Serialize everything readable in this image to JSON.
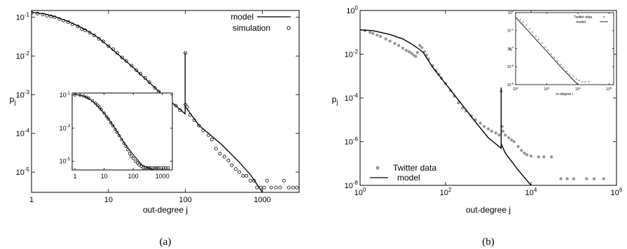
{
  "chart_data": [
    {
      "id": "a",
      "type": "scatter",
      "caption": "(a)",
      "xlabel": "out-degree j",
      "ylabel": "p",
      "ylabel_sub": "j",
      "xscale": "log",
      "yscale": "log",
      "xlim": [
        1,
        3000
      ],
      "ylim": [
        3e-06,
        0.15
      ],
      "x_ticks": [
        1,
        10,
        100,
        1000
      ],
      "x_tick_labels": [
        "1",
        "10",
        "100",
        "1000"
      ],
      "y_ticks": [
        1e-05,
        0.0001,
        0.001,
        0.01,
        0.1
      ],
      "y_tick_labels": [
        "10",
        "10",
        "10",
        "10",
        "10"
      ],
      "y_tick_exps": [
        "-5",
        "-4",
        "-3",
        "-2",
        "-1"
      ],
      "legend_position": "top-right",
      "series": [
        {
          "name": "model",
          "kind": "line",
          "x": [
            1,
            1.5,
            2,
            3,
            4,
            5,
            7,
            10,
            15,
            20,
            30,
            50,
            70,
            99,
            99,
            99,
            150,
            200,
            300,
            500,
            700,
            1000
          ],
          "y": [
            0.135,
            0.122,
            0.105,
            0.078,
            0.06,
            0.048,
            0.032,
            0.018,
            0.009,
            0.0055,
            0.0026,
            0.001,
            0.00058,
            0.00032,
            0.0122,
            0.0005,
            0.00016,
            0.0001,
            5e-05,
            1.8e-05,
            8.5e-06,
            3e-06
          ]
        },
        {
          "name": "simulation",
          "kind": "points",
          "x": [
            1,
            1.2,
            1.4,
            1.6,
            1.8,
            2,
            2.3,
            2.6,
            3,
            3.4,
            4,
            4.5,
            5,
            5.7,
            6.5,
            7.5,
            8.5,
            10,
            11.5,
            13,
            15,
            17,
            20,
            23,
            26,
            30,
            34,
            40,
            45,
            50,
            57,
            65,
            75,
            85,
            100,
            100,
            105,
            115,
            130,
            150,
            170,
            200,
            220,
            250,
            280,
            320,
            360,
            400,
            450,
            500,
            560,
            620,
            700,
            780,
            850,
            950,
            1050,
            1150,
            1300,
            1500,
            1700,
            1900,
            2200,
            2500,
            2800
          ],
          "y": [
            0.13,
            0.125,
            0.118,
            0.11,
            0.105,
            0.1,
            0.09,
            0.082,
            0.075,
            0.066,
            0.058,
            0.05,
            0.046,
            0.04,
            0.034,
            0.028,
            0.024,
            0.018,
            0.015,
            0.012,
            0.0092,
            0.0075,
            0.0056,
            0.0043,
            0.0035,
            0.0027,
            0.0021,
            0.0015,
            0.0012,
            0.001,
            0.00082,
            0.00066,
            0.00052,
            0.0004,
            0.012,
            0.00055,
            0.00048,
            0.0003,
            0.00022,
            0.00016,
            0.00012,
            9e-05,
            7e-05,
            4e-05,
            3e-05,
            2.5e-05,
            2e-05,
            1.5e-05,
            1.2e-05,
            1e-05,
            8e-06,
            8e-06,
            6e-06,
            6e-06,
            4e-06,
            4e-06,
            4e-06,
            6e-06,
            4e-06,
            4e-06,
            4e-06,
            6e-06,
            4e-06,
            4e-06,
            4e-06
          ]
        }
      ],
      "inset": {
        "xscale": "log",
        "yscale": "log",
        "xlim": [
          0.8,
          2200
        ],
        "ylim": [
          3e-06,
          0.13
        ],
        "x_ticks": [
          1,
          10,
          100,
          1000
        ],
        "x_tick_labels": [
          "1",
          "10",
          "100",
          "1000"
        ],
        "y_ticks": [
          1e-05,
          0.001,
          0.1
        ],
        "y_tick_labels": [
          "10",
          "10",
          "10"
        ],
        "y_tick_exps": [
          "-5",
          "-3",
          "-1"
        ],
        "series": [
          {
            "name": "model",
            "kind": "line",
            "x": [
              1,
              2,
              3,
              5,
              10,
              20,
              50,
              100,
              200,
              500,
              1000,
              1500
            ],
            "y": [
              0.11,
              0.085,
              0.06,
              0.03,
              0.008,
              0.0015,
              0.00012,
              2.5e-05,
              6e-06,
              3e-06,
              3e-06,
              3e-06
            ]
          },
          {
            "name": "simulation",
            "kind": "points",
            "x": [
              1,
              1.5,
              2,
              2.5,
              3,
              4,
              5,
              6,
              7,
              8,
              10,
              12,
              14,
              17,
              20,
              24,
              28,
              33,
              40,
              48,
              56,
              65,
              75,
              85,
              100,
              120,
              140,
              160,
              190,
              220,
              260,
              300,
              350,
              400,
              480,
              560,
              650,
              750,
              900,
              1100,
              1300,
              1600
            ],
            "y": [
              0.1,
              0.095,
              0.085,
              0.072,
              0.062,
              0.045,
              0.032,
              0.024,
              0.018,
              0.013,
              0.008,
              0.005,
              0.0035,
              0.0021,
              0.0014,
              0.00085,
              0.00055,
              0.00035,
              0.0002,
              0.00012,
              8e-05,
              5e-05,
              3e-05,
              2e-05,
              1.5e-05,
              1e-05,
              8e-06,
              6e-06,
              5e-06,
              4e-06,
              4e-06,
              4e-06,
              4e-06,
              4e-06,
              4e-06,
              4e-06,
              4e-06,
              4e-06,
              4e-06,
              4e-06,
              4e-06,
              4e-06
            ]
          }
        ]
      }
    },
    {
      "id": "b",
      "type": "scatter",
      "caption": "(b)",
      "xlabel": "out-degree j",
      "ylabel": "p",
      "ylabel_sub": "j",
      "xscale": "log",
      "yscale": "log",
      "xlim": [
        1,
        1000000
      ],
      "ylim": [
        1e-08,
        1
      ],
      "x_ticks": [
        1,
        100,
        10000,
        1000000
      ],
      "x_tick_labels": [
        "10",
        "10",
        "10",
        "10"
      ],
      "x_tick_exps": [
        "0",
        "2",
        "4",
        "6"
      ],
      "y_ticks": [
        1e-08,
        1e-06,
        0.0001,
        0.01,
        1
      ],
      "y_tick_labels": [
        "10",
        "10",
        "10",
        "10",
        "10"
      ],
      "y_tick_exps": [
        "-8",
        "-6",
        "-4",
        "-2",
        "0"
      ],
      "legend_position": "bottom-left",
      "series": [
        {
          "name": "Twitter data",
          "kind": "points",
          "x": [
            1,
            1.3,
            1.7,
            2,
            2.5,
            3,
            4,
            5,
            6.5,
            8,
            10,
            12,
            14,
            16,
            18,
            20,
            22,
            25,
            28,
            32,
            36,
            40,
            50,
            60,
            70,
            80,
            100,
            130,
            160,
            200,
            250,
            300,
            400,
            500,
            650,
            800,
            1000,
            1200,
            1500,
            1800,
            2000,
            2100,
            2200,
            2500,
            3000,
            3500,
            4000,
            5000,
            6000,
            7000,
            8000,
            10000,
            15000,
            20000,
            30000,
            50000,
            70000,
            100000,
            200000,
            300000,
            500000
          ],
          "y": [
            0.13,
            0.12,
            0.1,
            0.09,
            0.075,
            0.065,
            0.05,
            0.04,
            0.031,
            0.025,
            0.019,
            0.015,
            0.013,
            0.011,
            0.009,
            0.008,
            0.012,
            0.025,
            0.02,
            0.013,
            0.009,
            0.006,
            0.003,
            0.0018,
            0.0012,
            0.0008,
            0.00045,
            0.00022,
            0.00012,
            6e-05,
            3.5e-05,
            2.5e-05,
            1.5e-05,
            1e-05,
            7e-06,
            5e-06,
            3.8e-06,
            3e-06,
            2.5e-06,
            2e-06,
            0.0002,
            5e-06,
            3e-06,
            2e-06,
            1.5e-06,
            1.2e-06,
            1e-06,
            6e-07,
            4e-07,
            3e-07,
            2.5e-07,
            2.2e-07,
            2e-07,
            2e-07,
            2e-07,
            2e-08,
            2e-08,
            2e-08,
            2e-08,
            2e-08,
            2e-08
          ]
        },
        {
          "name": "model",
          "kind": "line",
          "x": [
            1,
            2,
            5,
            10,
            15,
            20,
            25,
            30,
            50,
            100,
            200,
            500,
            1000,
            2000,
            2000,
            2000,
            2500,
            5000,
            10000
          ],
          "y": [
            0.13,
            0.12,
            0.08,
            0.05,
            0.032,
            0.022,
            0.016,
            0.012,
            0.0025,
            0.00045,
            8e-05,
            8e-06,
            1.5e-06,
            5e-07,
            0.0003,
            8e-07,
            3e-07,
            5e-08,
            1e-08
          ]
        }
      ],
      "inset": {
        "xlabel": "in-degree i",
        "ylabel": "p",
        "ylabel_sub": "i",
        "xscale": "log",
        "yscale": "log",
        "xlim": [
          1,
          2000000
        ],
        "ylim": [
          1e-08,
          1
        ],
        "x_ticks": [
          1,
          100,
          10000,
          1000000
        ],
        "x_tick_labels": [
          "10",
          "10",
          "10",
          "10"
        ],
        "x_tick_exps": [
          "0",
          "2",
          "4",
          "6"
        ],
        "y_ticks": [
          1e-08,
          1e-06,
          0.0001,
          0.01,
          1
        ],
        "y_tick_labels": [
          "10",
          "10",
          "10",
          "10",
          "10"
        ],
        "y_tick_exps": [
          "-8",
          "-6",
          "-4",
          "-2",
          "0"
        ],
        "series": [
          {
            "name": "Twitter data",
            "kind": "points",
            "x": [
              1,
              2,
              3,
              5,
              8,
              12,
              20,
              30,
              50,
              80,
              120,
              200,
              300,
              500,
              800,
              1200,
              2000,
              3000,
              5000,
              8000,
              12000,
              20000,
              30000,
              50000
            ],
            "y": [
              0.4,
              0.16,
              0.09,
              0.04,
              0.015,
              0.007,
              0.0025,
              0.0011,
              0.0004,
              0.00015,
              7e-05,
              2.5e-05,
              1.1e-05,
              4e-06,
              1.7e-06,
              8e-07,
              3e-07,
              1.5e-07,
              8e-08,
              4e-08,
              3e-08,
              2e-08,
              2e-08,
              2e-08
            ]
          },
          {
            "name": "model",
            "kind": "line",
            "x": [
              1,
              10,
              100,
              1000,
              10000
            ],
            "y": [
              0.3,
              0.004,
              5e-05,
              6e-07,
              1e-08
            ]
          }
        ]
      }
    }
  ]
}
